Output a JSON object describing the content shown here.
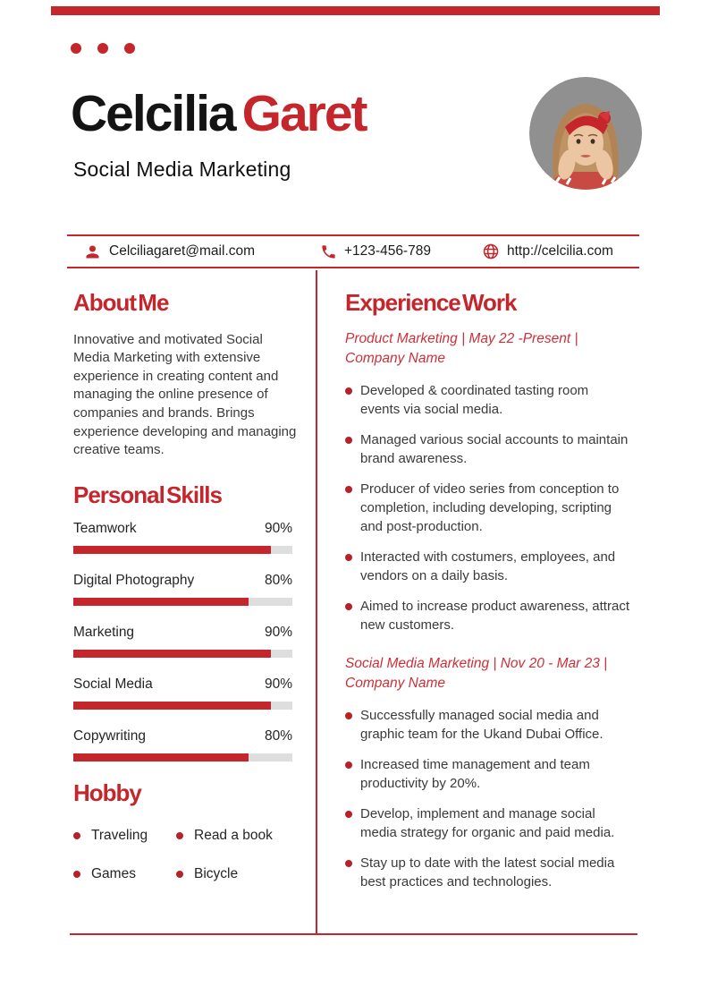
{
  "page": {
    "accent_color": "#C4262C",
    "title_color_primary": "#141414"
  },
  "header": {
    "name_first": "Celcilia",
    "name_last": "Garet",
    "subtitle": "Social Media Marketing"
  },
  "icons": {
    "person": "person-icon",
    "phone": "phone-icon",
    "globe": "globe-icon",
    "bullet": "red-dot-bullet"
  },
  "contact": {
    "email": "Celciliagaret@mail.com",
    "phone": "+123-456-789",
    "website": "http://celcilia.com"
  },
  "about": {
    "heading": "About Me",
    "text": "Innovative and motivated Social Media Marketing with extensive experience in creating content and managing the online presence of companies and brands. Brings experience developing and managing creative teams."
  },
  "skills": {
    "heading": "Personal Skills",
    "items": [
      {
        "label": "Teamwork",
        "percent": "90%",
        "value": 90
      },
      {
        "label": "Digital Photography",
        "percent": "80%",
        "value": 80
      },
      {
        "label": "Marketing",
        "percent": "90%",
        "value": 90
      },
      {
        "label": "Social Media",
        "percent": "90%",
        "value": 90
      },
      {
        "label": "Copywriting",
        "percent": "80%",
        "value": 80
      }
    ]
  },
  "hobby": {
    "heading": "Hobby",
    "items": [
      "Traveling",
      "Read a book",
      "Games",
      "Bicycle"
    ]
  },
  "experience": {
    "heading": "Experience Work",
    "jobs": [
      {
        "title": "Product Marketing | May 22 -Present | Company Name",
        "bullets": [
          "Developed & coordinated tasting room events via social media.",
          "Managed various social accounts to maintain brand awareness.",
          "Producer of video series from conception to completion, including developing, scripting and post-production.",
          "Interacted with costumers, employees, and vendors on a daily basis.",
          "Aimed to increase product awareness, attract new customers."
        ]
      },
      {
        "title": "Social Media Marketing | Nov 20 - Mar 23 | Company Name",
        "bullets": [
          "Successfully managed social media and graphic team for the Ukand Dubai Office.",
          "Increased time management and team productivity by 20%.",
          "Develop, implement and manage social media strategy for organic and paid media.",
          "Stay up to date with the latest social media best practices and technologies."
        ]
      }
    ]
  }
}
